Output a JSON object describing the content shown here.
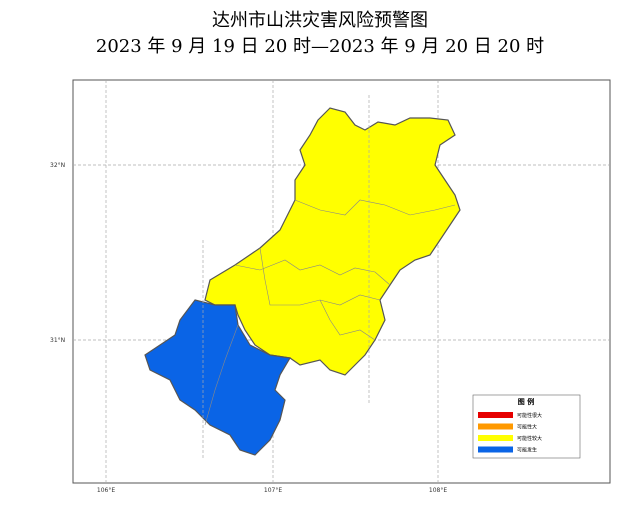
{
  "title": "达州市山洪灾害风险预警图",
  "subtitle": "2023 年 9 月 19 日 20 时—2023 年 9 月 20 日 20 时",
  "latitude_labels": [
    "32°N",
    "31°N"
  ],
  "longitude_labels": [
    "106°E",
    "107°E",
    "108°E"
  ],
  "legend": {
    "title": "图 例",
    "items": [
      {
        "label": "可能性很大",
        "color": "#e60000"
      },
      {
        "label": "可能性大",
        "color": "#ff9900"
      },
      {
        "label": "可能性较大",
        "color": "#ffff00"
      },
      {
        "label": "可能发生",
        "color": "#0a64e6"
      }
    ]
  }
}
